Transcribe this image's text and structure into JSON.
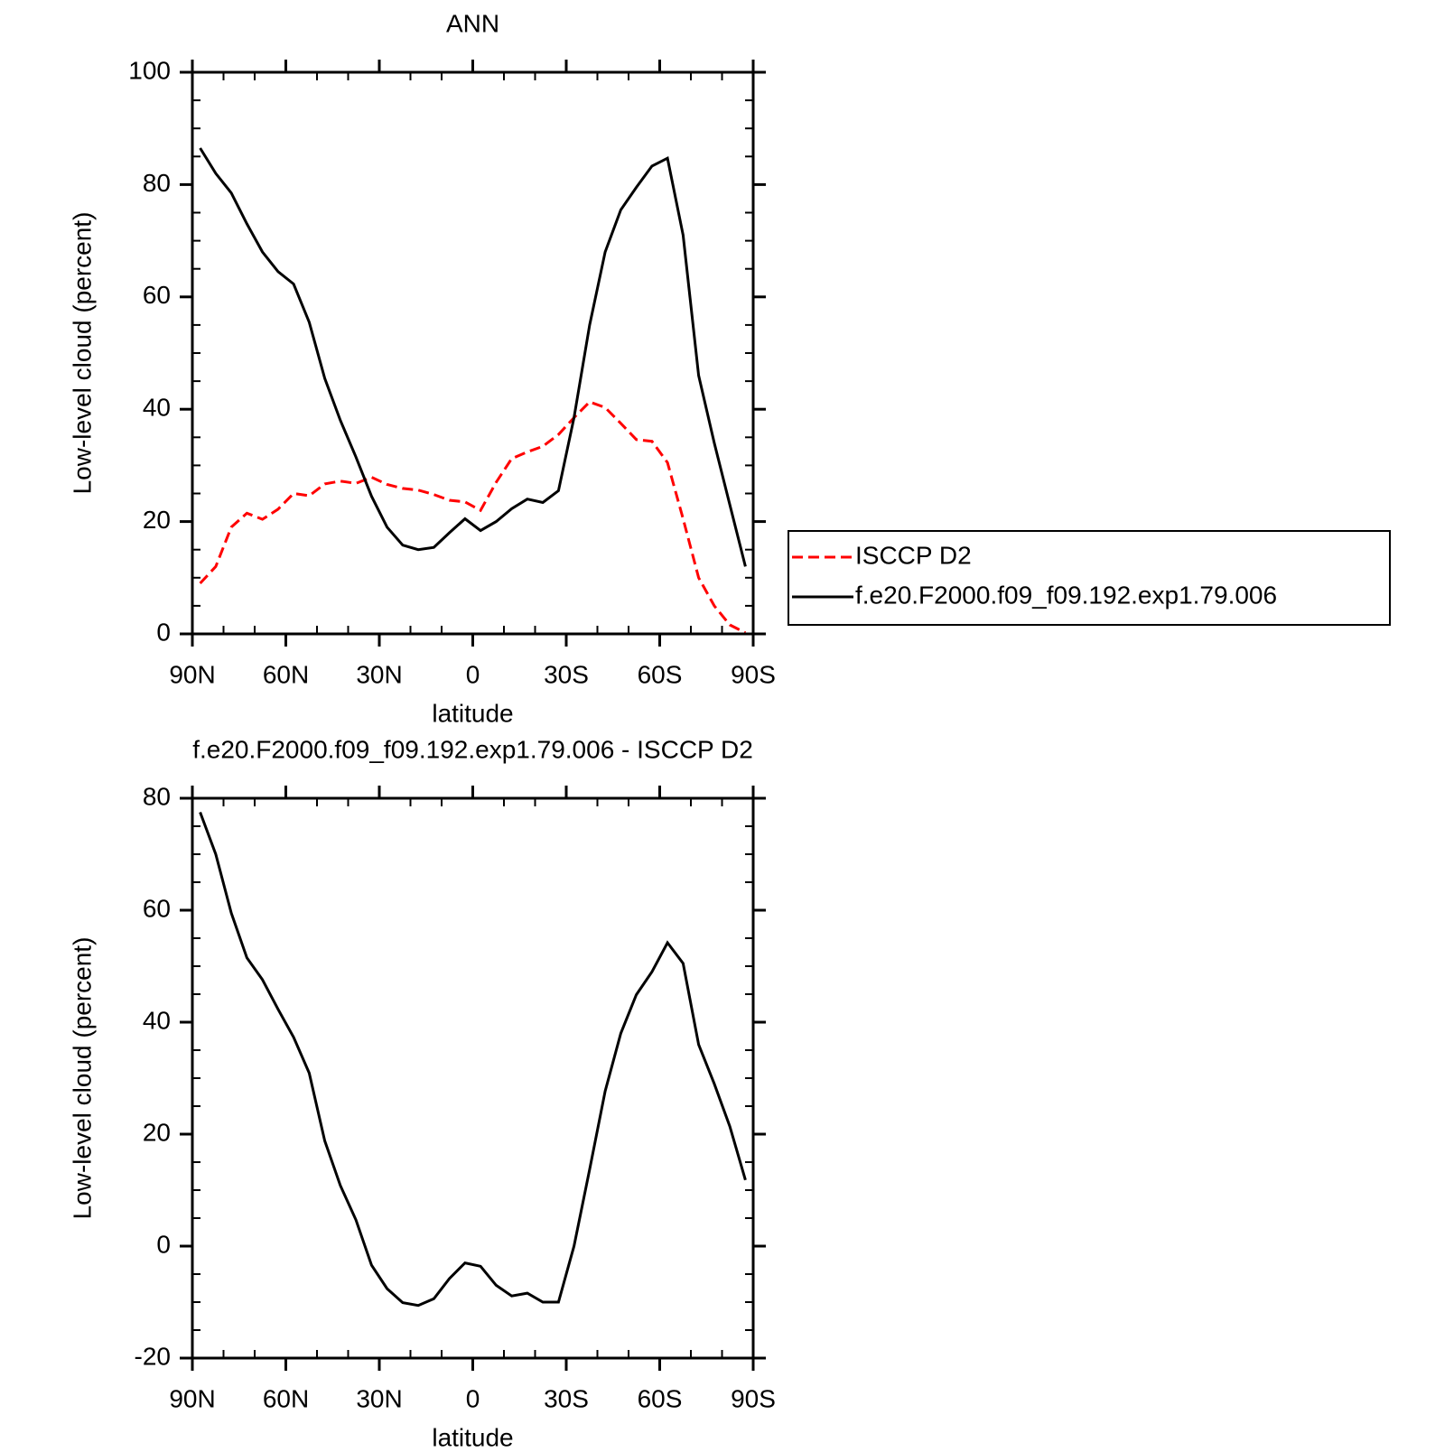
{
  "chart_data": [
    {
      "type": "line",
      "title": "ANN",
      "x_label": "latitude",
      "y_label": "Low-level cloud (percent)",
      "x": [
        87.5,
        82.5,
        77.5,
        72.5,
        67.5,
        62.5,
        57.5,
        52.5,
        47.5,
        42.5,
        37.5,
        32.5,
        27.5,
        22.5,
        17.5,
        12.5,
        7.5,
        2.5,
        -2.5,
        -7.5,
        -12.5,
        -17.5,
        -22.5,
        -27.5,
        -32.5,
        -37.5,
        -42.5,
        -47.5,
        -52.5,
        -57.5,
        -62.5,
        -67.5,
        -72.5,
        -77.5,
        -82.5,
        -87.5
      ],
      "xlim": [
        90,
        -90
      ],
      "xticks": [
        {
          "value": 90,
          "label": "90N"
        },
        {
          "value": 60,
          "label": "60N"
        },
        {
          "value": 30,
          "label": "30N"
        },
        0,
        {
          "value": -30,
          "label": "30S"
        },
        {
          "value": -60,
          "label": "60S"
        },
        {
          "value": -90,
          "label": "90S"
        }
      ],
      "ylim": [
        0,
        100
      ],
      "yticks": [
        0,
        20,
        40,
        60,
        80,
        100
      ],
      "grid": false,
      "legend": "right",
      "series": [
        {
          "name": "ISCCP D2",
          "color": "#ff0000",
          "dash": "dashed",
          "values": [
            9,
            12,
            19,
            21.5,
            20.4,
            22.2,
            25,
            24.6,
            26.7,
            27.2,
            26.8,
            27.9,
            26.6,
            25.9,
            25.6,
            24.8,
            23.8,
            23.5,
            22,
            27,
            31.2,
            32.4,
            33.4,
            35.5,
            38.5,
            41.3,
            40.3,
            37.5,
            34.6,
            34.3,
            30.5,
            20.5,
            10,
            5,
            1.6,
            0.2
          ]
        },
        {
          "name": "f.e20.F2000.f09_f09.192.exp1.79.006",
          "color": "#000000",
          "dash": "solid",
          "values": [
            86.5,
            82,
            78.5,
            73,
            68,
            64.5,
            62.3,
            55.5,
            45.5,
            38,
            31.5,
            24.5,
            19,
            15.8,
            15,
            15.4,
            18,
            20.5,
            18.4,
            20,
            22.3,
            24,
            23.4,
            25.5,
            38.5,
            55,
            68,
            75.5,
            79.5,
            83.3,
            84.7,
            71,
            46,
            34,
            23,
            12
          ]
        }
      ]
    },
    {
      "type": "line",
      "title": "f.e20.F2000.f09_f09.192.exp1.79.006 - ISCCP D2",
      "x_label": "latitude",
      "y_label": "Low-level cloud (percent)",
      "x": [
        87.5,
        82.5,
        77.5,
        72.5,
        67.5,
        62.5,
        57.5,
        52.5,
        47.5,
        42.5,
        37.5,
        32.5,
        27.5,
        22.5,
        17.5,
        12.5,
        7.5,
        2.5,
        -2.5,
        -7.5,
        -12.5,
        -17.5,
        -22.5,
        -27.5,
        -32.5,
        -37.5,
        -42.5,
        -47.5,
        -52.5,
        -57.5,
        -62.5,
        -67.5,
        -72.5,
        -77.5,
        -82.5,
        -87.5
      ],
      "xlim": [
        90,
        -90
      ],
      "xticks": [
        {
          "value": 90,
          "label": "90N"
        },
        {
          "value": 60,
          "label": "60N"
        },
        {
          "value": 30,
          "label": "30N"
        },
        0,
        {
          "value": -30,
          "label": "30S"
        },
        {
          "value": -60,
          "label": "60S"
        },
        {
          "value": -90,
          "label": "90S"
        }
      ],
      "ylim": [
        -20,
        80
      ],
      "yticks": [
        -20,
        0,
        20,
        40,
        60,
        80
      ],
      "grid": false,
      "series": [
        {
          "color": "#000000",
          "dash": "solid",
          "values": [
            77.5,
            70,
            59.5,
            51.5,
            47.6,
            42.3,
            37.3,
            30.9,
            18.8,
            10.8,
            4.7,
            -3.4,
            -7.6,
            -10.1,
            -10.6,
            -9.4,
            -5.8,
            -3,
            -3.6,
            -7,
            -8.9,
            -8.4,
            -10,
            -10,
            0,
            13.7,
            27.7,
            38,
            44.9,
            49,
            54.2,
            50.5,
            36,
            29,
            21.4,
            11.8
          ]
        }
      ]
    }
  ]
}
